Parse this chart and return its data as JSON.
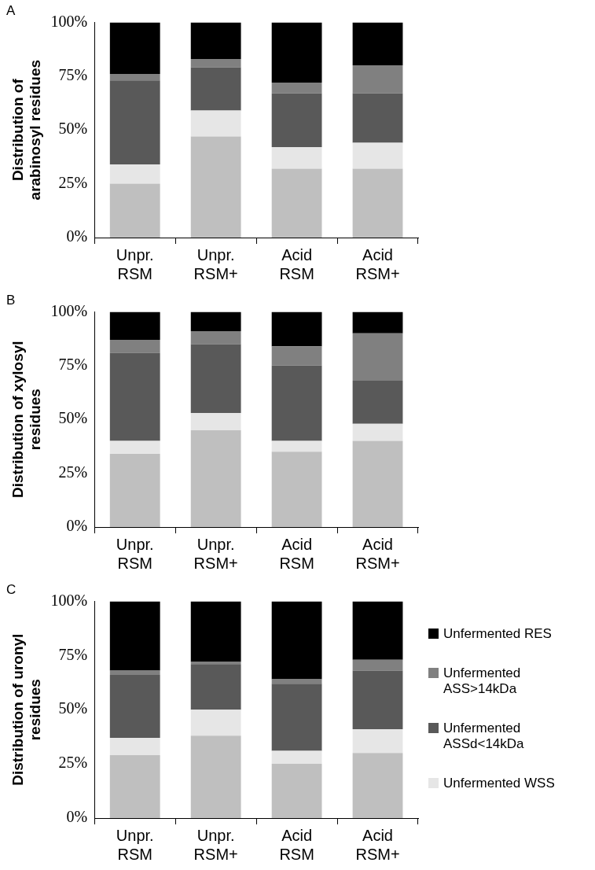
{
  "chart_data": [
    {
      "type": "bar",
      "title": "A",
      "ylabel": "Distribution of arabinosyl residues",
      "categories": [
        "Unpr. RSM",
        "Unpr. RSM+",
        "Acid RSM",
        "Acid RSM+"
      ],
      "stacked": true,
      "ylim": [
        0,
        100
      ],
      "yticks": [
        {
          "value": 0,
          "label": "0%"
        },
        {
          "value": 25,
          "label": "25%"
        },
        {
          "value": 50,
          "label": "50%"
        },
        {
          "value": 75,
          "label": "75%"
        },
        {
          "value": 100,
          "label": "100%"
        }
      ],
      "grid": false,
      "legend": false,
      "series": [
        {
          "color": "#bfbfbf",
          "values": [
            25,
            47,
            32,
            32
          ]
        },
        {
          "color": "#e6e6e6",
          "values": [
            9,
            12,
            10,
            12
          ]
        },
        {
          "color": "#595959",
          "values": [
            39,
            20,
            25,
            23
          ]
        },
        {
          "color": "#808080",
          "values": [
            3,
            4,
            5,
            13
          ]
        },
        {
          "color": "#000000",
          "values": [
            24,
            17,
            28,
            20
          ]
        }
      ]
    },
    {
      "type": "bar",
      "title": "B",
      "ylabel": "Distribution of xylosyl residues",
      "categories": [
        "Unpr. RSM",
        "Unpr. RSM+",
        "Acid RSM",
        "Acid RSM+"
      ],
      "stacked": true,
      "ylim": [
        0,
        100
      ],
      "yticks": [
        {
          "value": 0,
          "label": "0%"
        },
        {
          "value": 25,
          "label": "25%"
        },
        {
          "value": 50,
          "label": "50%"
        },
        {
          "value": 75,
          "label": "75%"
        },
        {
          "value": 100,
          "label": "100%"
        }
      ],
      "grid": false,
      "legend": false,
      "series": [
        {
          "color": "#bfbfbf",
          "values": [
            34,
            45,
            35,
            40
          ]
        },
        {
          "color": "#e6e6e6",
          "values": [
            6,
            8,
            5,
            8
          ]
        },
        {
          "color": "#595959",
          "values": [
            41,
            32,
            35,
            20
          ]
        },
        {
          "color": "#808080",
          "values": [
            6,
            6,
            9,
            22
          ]
        },
        {
          "color": "#000000",
          "values": [
            13,
            9,
            16,
            10
          ]
        }
      ]
    },
    {
      "type": "bar",
      "title": "C",
      "ylabel": "Distribution of uronyl residues",
      "categories": [
        "Unpr. RSM",
        "Unpr. RSM+",
        "Acid RSM",
        "Acid RSM+"
      ],
      "stacked": true,
      "ylim": [
        0,
        100
      ],
      "yticks": [
        {
          "value": 0,
          "label": "0%"
        },
        {
          "value": 25,
          "label": "25%"
        },
        {
          "value": 50,
          "label": "50%"
        },
        {
          "value": 75,
          "label": "75%"
        },
        {
          "value": 100,
          "label": "100%"
        }
      ],
      "grid": false,
      "legend": "right",
      "series": [
        {
          "color": "#bfbfbf",
          "values": [
            29,
            38,
            25,
            30
          ]
        },
        {
          "name": "Unfermented WSS",
          "color": "#e6e6e6",
          "values": [
            8,
            12,
            6,
            11
          ]
        },
        {
          "name": "Unfermented ASSd<14kDa",
          "color": "#595959",
          "values": [
            29,
            21,
            31,
            27
          ]
        },
        {
          "name": "Unfermented ASS>14kDa",
          "color": "#808080",
          "values": [
            2,
            1,
            2,
            5
          ]
        },
        {
          "name": "Unfermented RES",
          "color": "#000000",
          "values": [
            32,
            28,
            36,
            27
          ]
        }
      ]
    }
  ]
}
